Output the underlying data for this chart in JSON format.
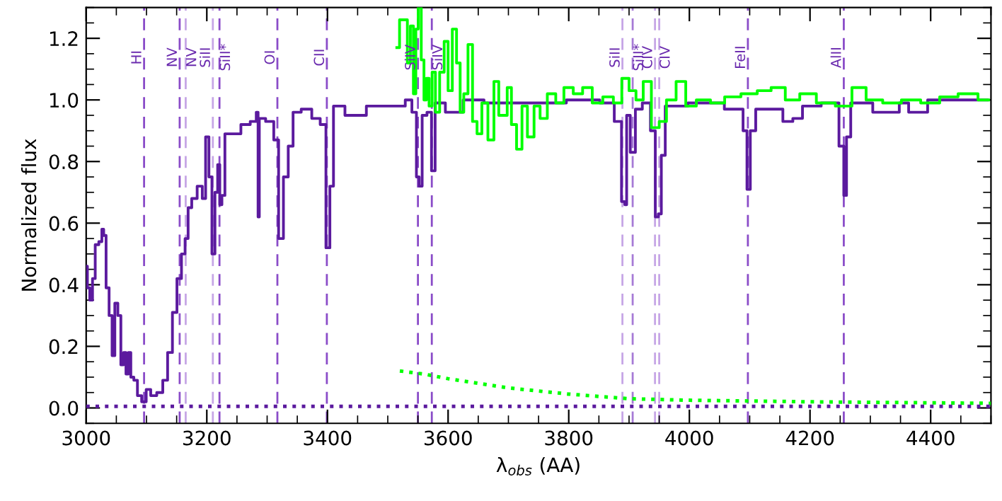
{
  "chart_data": {
    "type": "step",
    "xlabel": "λ$_{obs}$ (AA)",
    "ylabel": "Normalized flux",
    "xlim": [
      3000,
      4500
    ],
    "ylim": [
      -0.05,
      1.3
    ],
    "xticks": [
      3000,
      3200,
      3400,
      3600,
      3800,
      4000,
      4200,
      4400
    ],
    "yticks": [
      {
        "value": 0,
        "label": "0.0"
      },
      0.2,
      0.4,
      0.6,
      0.8,
      {
        "value": 1,
        "label": "1.0"
      },
      1.2
    ],
    "grid": false,
    "series": [
      {
        "color": "#5b1a9e",
        "x": [
          3000,
          3004,
          3008,
          3013,
          3017,
          3025,
          3027,
          3031,
          3035,
          3041,
          3045,
          3050,
          3055,
          3060,
          3064,
          3068,
          3072,
          3076,
          3082,
          3088,
          3096,
          3103,
          3111,
          3123,
          3131,
          3139,
          3147,
          3154,
          3162,
          3166,
          3172,
          3178,
          3190,
          3195,
          3201,
          3206,
          3211,
          3216,
          3220,
          3223,
          3227,
          3233,
          3249,
          3264,
          3280,
          3284,
          3286,
          3288,
          3307,
          3315,
          3323,
          3331,
          3339,
          3347,
          3366,
          3382,
          3394,
          3401,
          3407,
          3413,
          3445,
          3484,
          3523,
          3535,
          3545,
          3550,
          3554,
          3560,
          3570,
          3575,
          3582,
          3609,
          3641,
          3678,
          3756,
          3836,
          3867,
          3884,
          3891,
          3895,
          3897,
          3907,
          3914,
          3930,
          3941,
          3946,
          3951,
          3956,
          3964,
          4031,
          4085,
          4093,
          4098,
          4104,
          4116,
          4147,
          4163,
          4180,
          4195,
          4242,
          4254,
          4258,
          4263,
          4272,
          4336,
          4360,
          4367,
          4423,
          4494
        ],
        "values": [
          0.46,
          0.39,
          0.35,
          0.42,
          0.53,
          0.54,
          0.58,
          0.56,
          0.39,
          0.3,
          0.17,
          0.34,
          0.3,
          0.14,
          0.18,
          0.11,
          0.18,
          0.1,
          0.09,
          0.04,
          0.02,
          0.06,
          0.04,
          0.05,
          0.09,
          0.18,
          0.31,
          0.42,
          0.5,
          0.55,
          0.65,
          0.68,
          0.72,
          0.68,
          0.88,
          0.75,
          0.5,
          0.7,
          0.79,
          0.66,
          0.69,
          0.89,
          0.89,
          0.92,
          0.93,
          0.96,
          0.62,
          0.94,
          0.93,
          0.87,
          0.55,
          0.75,
          0.85,
          0.96,
          0.97,
          0.94,
          0.92,
          0.52,
          0.72,
          0.98,
          0.95,
          0.98,
          0.98,
          1.0,
          0.96,
          0.75,
          0.72,
          0.95,
          0.96,
          0.77,
          0.99,
          0.96,
          1.0,
          0.99,
          0.99,
          1.0,
          0.99,
          0.93,
          0.67,
          0.66,
          0.95,
          0.83,
          0.97,
          0.99,
          0.9,
          0.62,
          0.63,
          0.82,
          0.98,
          0.99,
          0.97,
          0.9,
          0.71,
          0.9,
          0.97,
          0.97,
          0.93,
          0.94,
          0.98,
          0.99,
          0.85,
          0.69,
          0.88,
          0.99,
          0.96,
          0.99,
          0.96,
          1.0,
          1.0
        ]
      },
      {
        "color": "#00ff00",
        "x": [
          3515,
          3524,
          3530,
          3535,
          3540,
          3545,
          3548,
          3553,
          3558,
          3562,
          3566,
          3571,
          3576,
          3582,
          3590,
          3597,
          3603,
          3611,
          3617,
          3623,
          3629,
          3637,
          3644,
          3652,
          3660,
          3672,
          3680,
          3688,
          3695,
          3701,
          3709,
          3718,
          3727,
          3736,
          3749,
          3756,
          3773,
          3784,
          3800,
          3815,
          3831,
          3847,
          3866,
          3882,
          3894,
          3906,
          3917,
          3930,
          3944,
          3956,
          3968,
          3988,
          4000,
          4023,
          4047,
          4070,
          4101,
          4124,
          4147,
          4171,
          4195,
          4226,
          4258,
          4281,
          4305,
          4336,
          4367,
          4400,
          4430,
          4461,
          4496
        ],
        "values": [
          1.17,
          1.26,
          1.26,
          1.12,
          1.24,
          1.02,
          1.23,
          1.3,
          1.13,
          1.0,
          1.07,
          0.98,
          1.09,
          0.96,
          1.09,
          1.19,
          1.03,
          1.23,
          1.12,
          0.96,
          1.02,
          1.18,
          0.93,
          0.89,
          0.99,
          0.87,
          1.06,
          0.95,
          0.95,
          1.04,
          0.92,
          0.84,
          0.98,
          0.88,
          0.98,
          0.94,
          1.02,
          0.99,
          1.04,
          1.02,
          1.04,
          0.99,
          1.01,
          0.99,
          1.07,
          1.03,
          1.0,
          1.06,
          0.91,
          0.93,
          1.0,
          1.06,
          0.98,
          1.0,
          0.99,
          1.01,
          1.02,
          1.03,
          1.04,
          1.0,
          1.02,
          0.99,
          0.98,
          1.04,
          1.0,
          0.99,
          1.0,
          0.99,
          1.01,
          1.02,
          1.0
        ]
      },
      {
        "type": "line",
        "line_style": "dotted",
        "color": "#00ff00",
        "x": [
          3520,
          3560,
          3600,
          3700,
          3800,
          3900,
          4000,
          4200,
          4500
        ],
        "values": [
          0.12,
          0.11,
          0.095,
          0.065,
          0.045,
          0.03,
          0.025,
          0.02,
          0.015
        ]
      },
      {
        "type": "line",
        "line_style": "dotted",
        "color": "#5b1a9e",
        "x": [
          3000,
          4500
        ],
        "values": [
          0.005,
          0.005
        ]
      }
    ],
    "ref_lines": [
      {
        "axis": "x",
        "value": 3096,
        "label": "HI",
        "color": "#8a4cc8"
      },
      {
        "axis": "x",
        "value": 3155,
        "label": "NV",
        "color": "#8a4cc8"
      },
      {
        "axis": "x",
        "value": 3165,
        "label": "NV",
        "color": "#c6a6e6"
      },
      {
        "axis": "x",
        "value": 3210,
        "label": "SiII",
        "color": "#c6a6e6"
      },
      {
        "axis": "x",
        "value": 3221,
        "label": "SiII*",
        "color": "#8a4cc8"
      },
      {
        "axis": "x",
        "value": 3317,
        "label": "OI",
        "color": "#8a4cc8"
      },
      {
        "axis": "x",
        "value": 3399,
        "label": "CII",
        "color": "#8a4cc8"
      },
      {
        "axis": "x",
        "value": 3550,
        "label": "SiIV",
        "color": "#8a4cc8"
      },
      {
        "axis": "x",
        "value": 3573,
        "label": "SiIV",
        "color": "#8a4cc8"
      },
      {
        "axis": "x",
        "value": 3889,
        "label": "SiII",
        "color": "#c6a6e6"
      },
      {
        "axis": "x",
        "value": 3906,
        "label": "SiII*",
        "color": "#a67ad6"
      },
      {
        "axis": "x",
        "value": 3943,
        "label": "CIV",
        "color": "#c6a6e6"
      },
      {
        "axis": "x",
        "value": 3950,
        "label": "CIV",
        "color": "#c6a6e6"
      },
      {
        "axis": "x",
        "value": 4097,
        "label": "FeII",
        "color": "#8a4cc8"
      },
      {
        "axis": "x",
        "value": 4256,
        "label": "AlII",
        "color": "#8a4cc8"
      }
    ]
  }
}
